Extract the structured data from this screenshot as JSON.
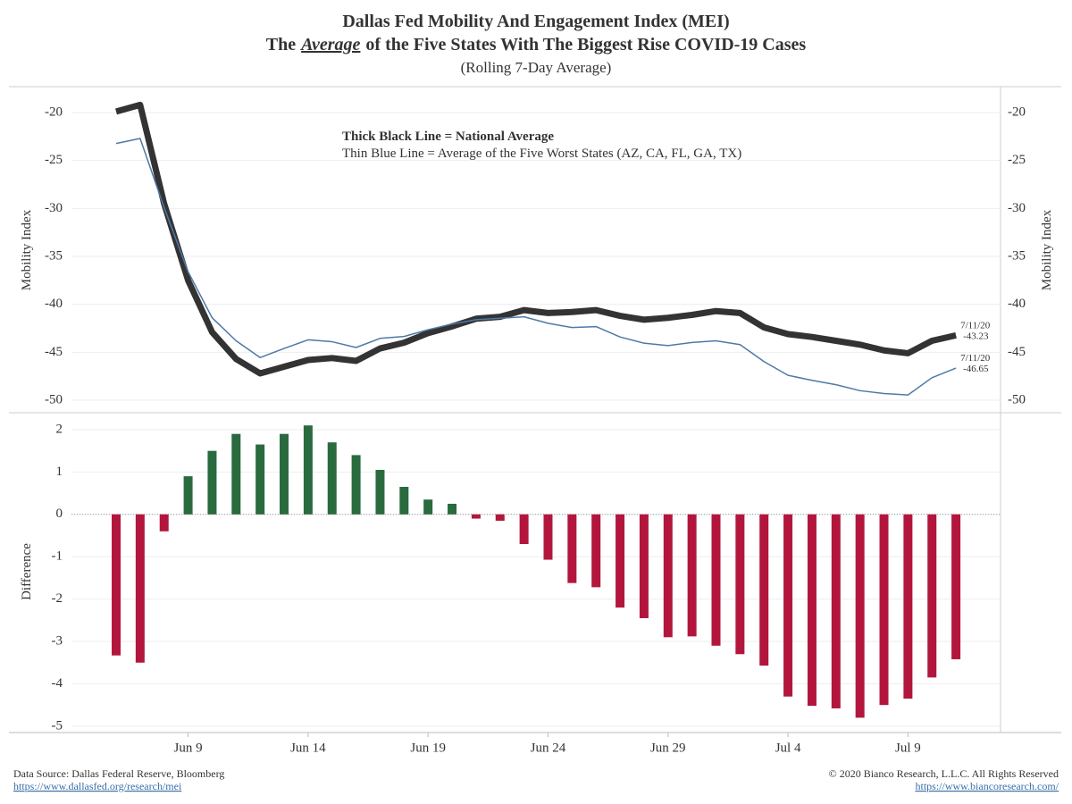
{
  "header": {
    "line1": "Dallas Fed Mobility And Engagement Index (MEI)",
    "line2": [
      "The",
      "Average",
      "of the Five States With The Biggest Rise COVID-19 Cases"
    ],
    "subtitle": "(Rolling 7-Day Average)"
  },
  "footer": {
    "source": "Data Source: Dallas Federal Reserve, Bloomberg",
    "source_url": "https://www.dallasfed.org/research/mei",
    "copyright": "© 2020 Bianco Research, L.L.C. All Rights Reserved",
    "copyright_url": "https://www.biancoresearch.com/"
  },
  "chart_data": [
    {
      "type": "line",
      "ylabel": "Mobility Index",
      "y2label": "Mobility Index",
      "ylim": [
        -51.3,
        -17.3
      ],
      "yticks": [
        -20,
        -25,
        -30,
        -35,
        -40,
        -45,
        -50
      ],
      "grid": true,
      "series": [
        {
          "name": "Thick Black Line = National Average",
          "color": "#333333",
          "values": [
            -19.9,
            -19.2,
            -29.5,
            -37.5,
            -42.9,
            -45.7,
            -47.2,
            -46.5,
            -45.8,
            -45.6,
            -45.9,
            -44.6,
            -44.0,
            -43.0,
            -42.3,
            -41.5,
            -41.3,
            -40.6,
            -40.9,
            -40.8,
            -40.6,
            -41.2,
            -41.6,
            -41.4,
            -41.1,
            -40.7,
            -40.9,
            -42.4,
            -43.1,
            -43.4,
            -43.8,
            -44.2,
            -44.8,
            -45.1,
            -43.8,
            -43.23
          ]
        },
        {
          "name": "Thin Blue Line = Average of the Five Worst States (AZ, CA, FL, GA, TX)",
          "color": "#4e79a7",
          "values": [
            -23.23,
            -22.7,
            -29.9,
            -36.6,
            -41.4,
            -43.8,
            -45.55,
            -44.6,
            -43.7,
            -43.9,
            -44.5,
            -43.55,
            -43.35,
            -42.65,
            -42.05,
            -41.6,
            -41.45,
            -41.3,
            -41.97,
            -42.42,
            -42.32,
            -43.4,
            -44.05,
            -44.3,
            -43.98,
            -43.8,
            -44.2,
            -45.97,
            -47.4,
            -47.92,
            -48.38,
            -49.0,
            -49.3,
            -49.45,
            -47.65,
            -46.65
          ]
        }
      ],
      "end_date_label": "7/11/20"
    },
    {
      "type": "bar",
      "ylabel": "Difference",
      "ylim": [
        -5.15,
        2.4
      ],
      "yticks": [
        2,
        1,
        0,
        -1,
        -2,
        -3,
        -4,
        -5
      ],
      "grid": true,
      "colors": {
        "positive": "#2a6a3f",
        "negative": "#b3163d"
      },
      "categories": [
        null,
        null,
        null,
        "Jun 9",
        null,
        null,
        null,
        null,
        "Jun 14",
        null,
        null,
        null,
        null,
        "Jun 19",
        null,
        null,
        null,
        null,
        "Jun 24",
        null,
        null,
        null,
        null,
        "Jun 29",
        null,
        null,
        null,
        null,
        "Jul 4",
        null,
        null,
        null,
        null,
        "Jul 9",
        null,
        null
      ],
      "values": [
        -3.33,
        -3.5,
        -0.4,
        0.9,
        1.5,
        1.9,
        1.65,
        1.9,
        2.1,
        1.7,
        1.4,
        1.05,
        0.65,
        0.35,
        0.25,
        -0.1,
        -0.15,
        -0.7,
        -1.07,
        -1.62,
        -1.72,
        -2.2,
        -2.45,
        -2.9,
        -2.88,
        -3.1,
        -3.3,
        -3.57,
        -4.3,
        -4.52,
        -4.58,
        -4.8,
        -4.5,
        -4.35,
        -3.85,
        -3.42
      ]
    }
  ]
}
